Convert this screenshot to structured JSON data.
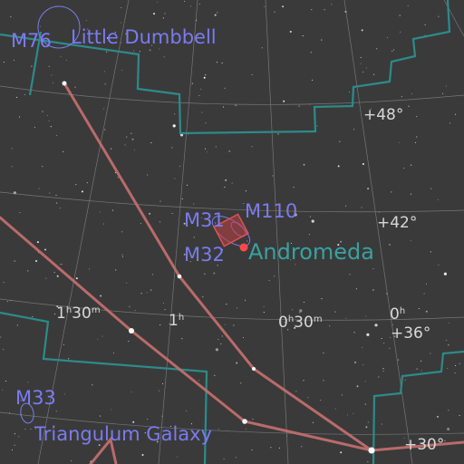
{
  "colors": {
    "background": "#3a3a3a",
    "grid": "#8a8a8a",
    "constellation_line": "#c87070",
    "constellation_boundary": "#2e8a8a",
    "dso": "#7b7bf0",
    "constellation_name": "#3aa0a0",
    "grid_label": "#d8d8d8",
    "marker": "#ff4a4a"
  },
  "objects": [
    {
      "id": "m76",
      "label": "M76",
      "name": "Little Dumbbell"
    },
    {
      "id": "m31",
      "label": "M31"
    },
    {
      "id": "m110",
      "label": "M110"
    },
    {
      "id": "m32",
      "label": "M32"
    },
    {
      "id": "m33",
      "label": "M33",
      "name": "Triangulum Galaxy"
    }
  ],
  "constellations": [
    {
      "id": "andromeda",
      "name": "Andromeda"
    }
  ],
  "grid_labels": {
    "dec": [
      "+48°",
      "+42°",
      "+36°",
      "+30°"
    ],
    "ra": [
      {
        "hours": "1",
        "minutes": "30"
      },
      {
        "hours": "1",
        "minutes": ""
      },
      {
        "hours": "0",
        "minutes": "30"
      },
      {
        "hours": "0",
        "minutes": ""
      }
    ],
    "ra_hour_unit": "h",
    "ra_minute_unit": "m"
  },
  "icons": {
    "galaxy": "ellipse-outline",
    "nebula": "circle-outline",
    "selection": "square-reticle"
  }
}
